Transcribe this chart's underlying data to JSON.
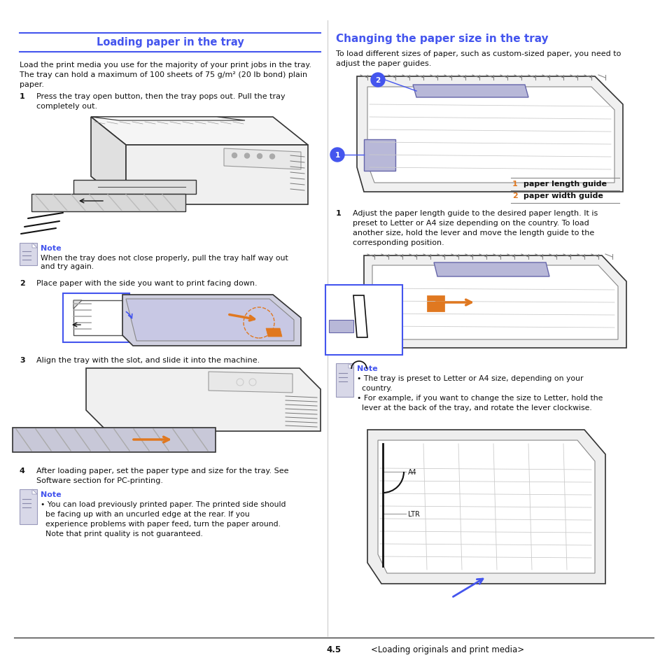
{
  "left_title": "Loading paper in the tray",
  "right_title": "Changing the paper size in the tray",
  "left_intro_line1": "Load the print media you use for the majority of your print jobs in the tray.",
  "left_intro_line2": "The tray can hold a maximum of 100 sheets of 75 g/m² (20 lb bond) plain",
  "left_intro_line3": "paper.",
  "step1_num": "1",
  "step1_line1": "Press the tray open button, then the tray pops out. Pull the tray",
  "step1_line2": "completely out.",
  "step2_num": "2",
  "step2_text": "Place paper with the side you want to print facing down.",
  "step3_num": "3",
  "step3_text": "Align the tray with the slot, and slide it into the machine.",
  "step4_num": "4",
  "step4_line1": "After loading paper, set the paper type and size for the tray. See",
  "step4_line2": "Software section for PC-printing.",
  "note1_title": "Note",
  "note1_text": "When the tray does not close properly, pull the tray half way out\nand try again.",
  "note2_title": "Note",
  "note2_line1": "• You can load previously printed paper. The printed side should",
  "note2_line2": "  be facing up with an uncurled edge at the rear. If you",
  "note2_line3": "  experience problems with paper feed, turn the paper around.",
  "note2_line4": "  Note that print quality is not guaranteed.",
  "right_intro_line1": "To load different sizes of paper, such as custom-sized paper, you need to",
  "right_intro_line2": "adjust the paper guides.",
  "legend_1_num": "1",
  "legend_1_text": "paper length guide",
  "legend_2_num": "2",
  "legend_2_text": "paper width guide",
  "step1r_num": "1",
  "step1r_line1": "Adjust the paper length guide to the desired paper length. It is",
  "step1r_line2": "preset to Letter or A4 size depending on the country. To load",
  "step1r_line3": "another size, hold the lever and move the length guide to the",
  "step1r_line4": "corresponding position.",
  "noter_title": "Note",
  "noter_line1": "• The tray is preset to Letter or A4 size, depending on your",
  "noter_line2": "  country.",
  "noter_line3": "• For example, if you want to change the size to Letter, hold the",
  "noter_line4": "  lever at the back of the tray, and rotate the lever clockwise.",
  "footer_num": "4.5",
  "footer_text": "<Loading originals and print media>",
  "blue": "#4455ee",
  "orange": "#e07820",
  "note_blue": "#4455ee",
  "dark": "#111111",
  "mid_gray": "#888888",
  "light_gray": "#cccccc",
  "diagram_fill": "#e8e8f0",
  "diagram_edge": "#333333",
  "guide_fill": "#b8b8d8",
  "note_bg": "#d8d8e8"
}
